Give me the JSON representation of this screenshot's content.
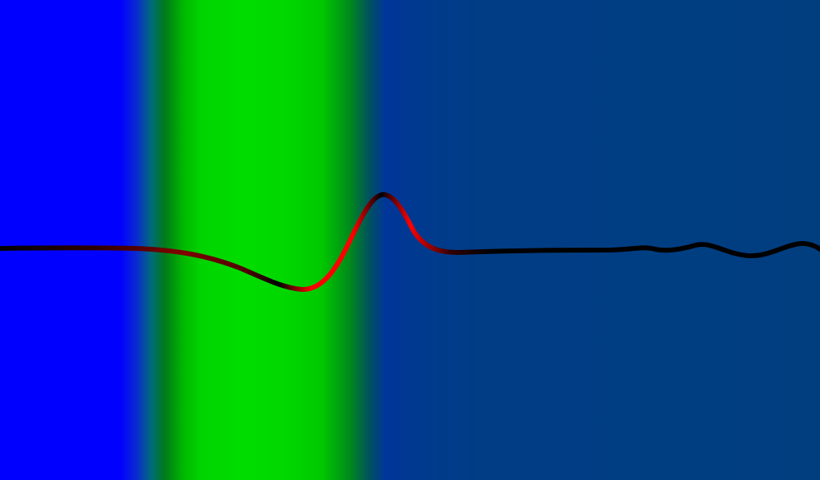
{
  "scene": {
    "description_colors": {
      "left_band": "#0000ff",
      "middle_band": "#00dc00",
      "right_band": "#003e80",
      "wave_edge": "#000000",
      "wave_peak": "#ff0000"
    }
  }
}
